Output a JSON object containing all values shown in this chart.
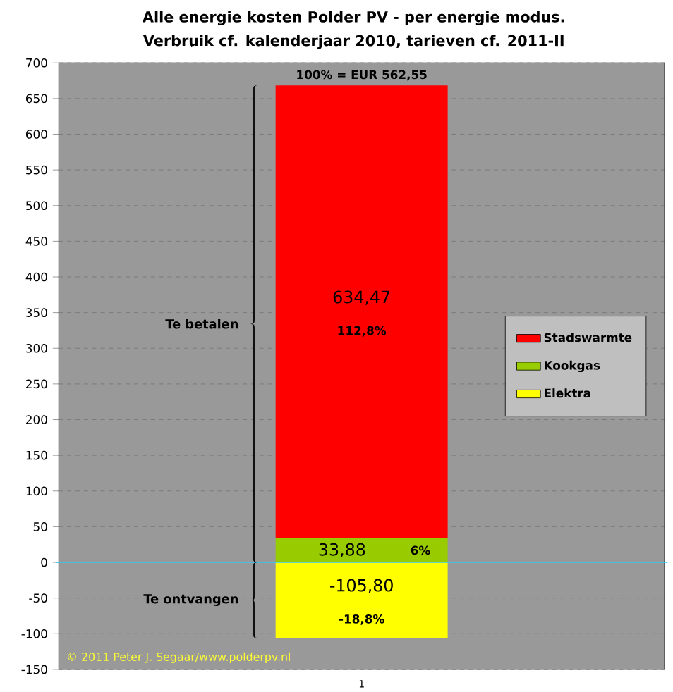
{
  "chart_data": {
    "type": "bar",
    "stacked": true,
    "title": "Alle energie kosten Polder PV - per energie modus.",
    "subtitle": "Verbruik cf. kalenderjaar 2010, tarieven cf. 2011-II",
    "categories": [
      "1"
    ],
    "series": [
      {
        "name": "Elektra",
        "color": "#ffff00",
        "values": [
          -105.8
        ],
        "value_labels": [
          "-105,80"
        ]
      },
      {
        "name": "Kookgas",
        "color": "#99cc00",
        "values": [
          33.88
        ],
        "value_labels": [
          "33,88"
        ]
      },
      {
        "name": "Stadswarmte",
        "color": "#ff0000",
        "values": [
          634.47
        ],
        "value_labels": [
          "634,47"
        ]
      }
    ],
    "ylim": [
      -150,
      700
    ],
    "yticks": [
      -150,
      -100,
      -50,
      0,
      50,
      100,
      150,
      200,
      250,
      300,
      350,
      400,
      450,
      500,
      550,
      600,
      650,
      700
    ],
    "grid": "y",
    "legend": "right",
    "ref_lines": [
      {
        "axis": "y",
        "value": 0,
        "color": "#33ccff"
      }
    ],
    "annotations": [
      "100% = EUR 562,55",
      "112,8%",
      "6%",
      "-18,8%",
      "Te betalen",
      "Te ontvangen",
      "© 2011 Peter J. Segaar/www.polderpv.nl"
    ]
  }
}
